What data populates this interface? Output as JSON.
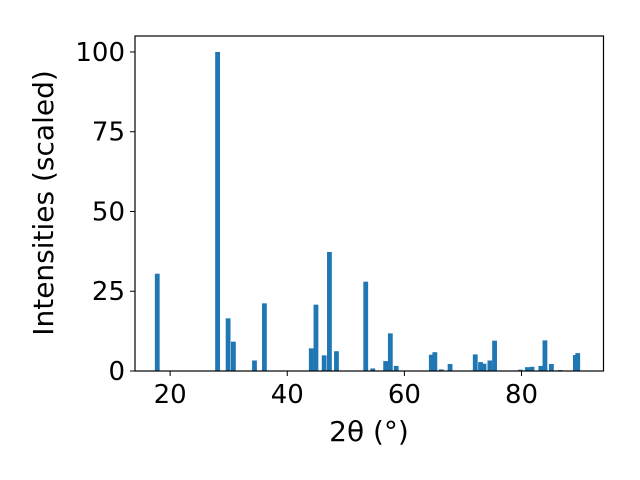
{
  "chart_data": {
    "type": "bar",
    "xlabel": "2θ (°)",
    "ylabel": "Intensities (scaled)",
    "xlim": [
      14,
      94
    ],
    "ylim": [
      0,
      105
    ],
    "xticks": [
      20,
      40,
      60,
      80
    ],
    "yticks": [
      0,
      25,
      50,
      75,
      100
    ],
    "grid": false,
    "bar_color": "#1f77b4",
    "points": [
      {
        "x": 17.8,
        "y": 30.5
      },
      {
        "x": 28.1,
        "y": 100
      },
      {
        "x": 29.9,
        "y": 16.5
      },
      {
        "x": 30.8,
        "y": 9.2
      },
      {
        "x": 34.4,
        "y": 3.3
      },
      {
        "x": 36.1,
        "y": 21.2
      },
      {
        "x": 44.1,
        "y": 7.1
      },
      {
        "x": 44.9,
        "y": 20.8
      },
      {
        "x": 46.3,
        "y": 4.9
      },
      {
        "x": 47.2,
        "y": 37.3
      },
      {
        "x": 48.4,
        "y": 6.2
      },
      {
        "x": 53.4,
        "y": 28.0
      },
      {
        "x": 54.6,
        "y": 0.8
      },
      {
        "x": 56.8,
        "y": 3.1
      },
      {
        "x": 57.6,
        "y": 11.8
      },
      {
        "x": 58.6,
        "y": 1.6
      },
      {
        "x": 64.6,
        "y": 5.1
      },
      {
        "x": 65.2,
        "y": 5.9
      },
      {
        "x": 66.3,
        "y": 0.5
      },
      {
        "x": 67.8,
        "y": 2.2
      },
      {
        "x": 72.1,
        "y": 5.2
      },
      {
        "x": 73.0,
        "y": 2.8
      },
      {
        "x": 73.6,
        "y": 2.3
      },
      {
        "x": 74.6,
        "y": 3.3
      },
      {
        "x": 75.4,
        "y": 9.5
      },
      {
        "x": 79.8,
        "y": 0.4
      },
      {
        "x": 81.0,
        "y": 1.2
      },
      {
        "x": 81.8,
        "y": 1.3
      },
      {
        "x": 83.3,
        "y": 1.6
      },
      {
        "x": 84.0,
        "y": 9.6
      },
      {
        "x": 85.1,
        "y": 2.2
      },
      {
        "x": 86.6,
        "y": 0.3
      },
      {
        "x": 89.2,
        "y": 5.0
      },
      {
        "x": 89.6,
        "y": 5.6
      }
    ]
  }
}
